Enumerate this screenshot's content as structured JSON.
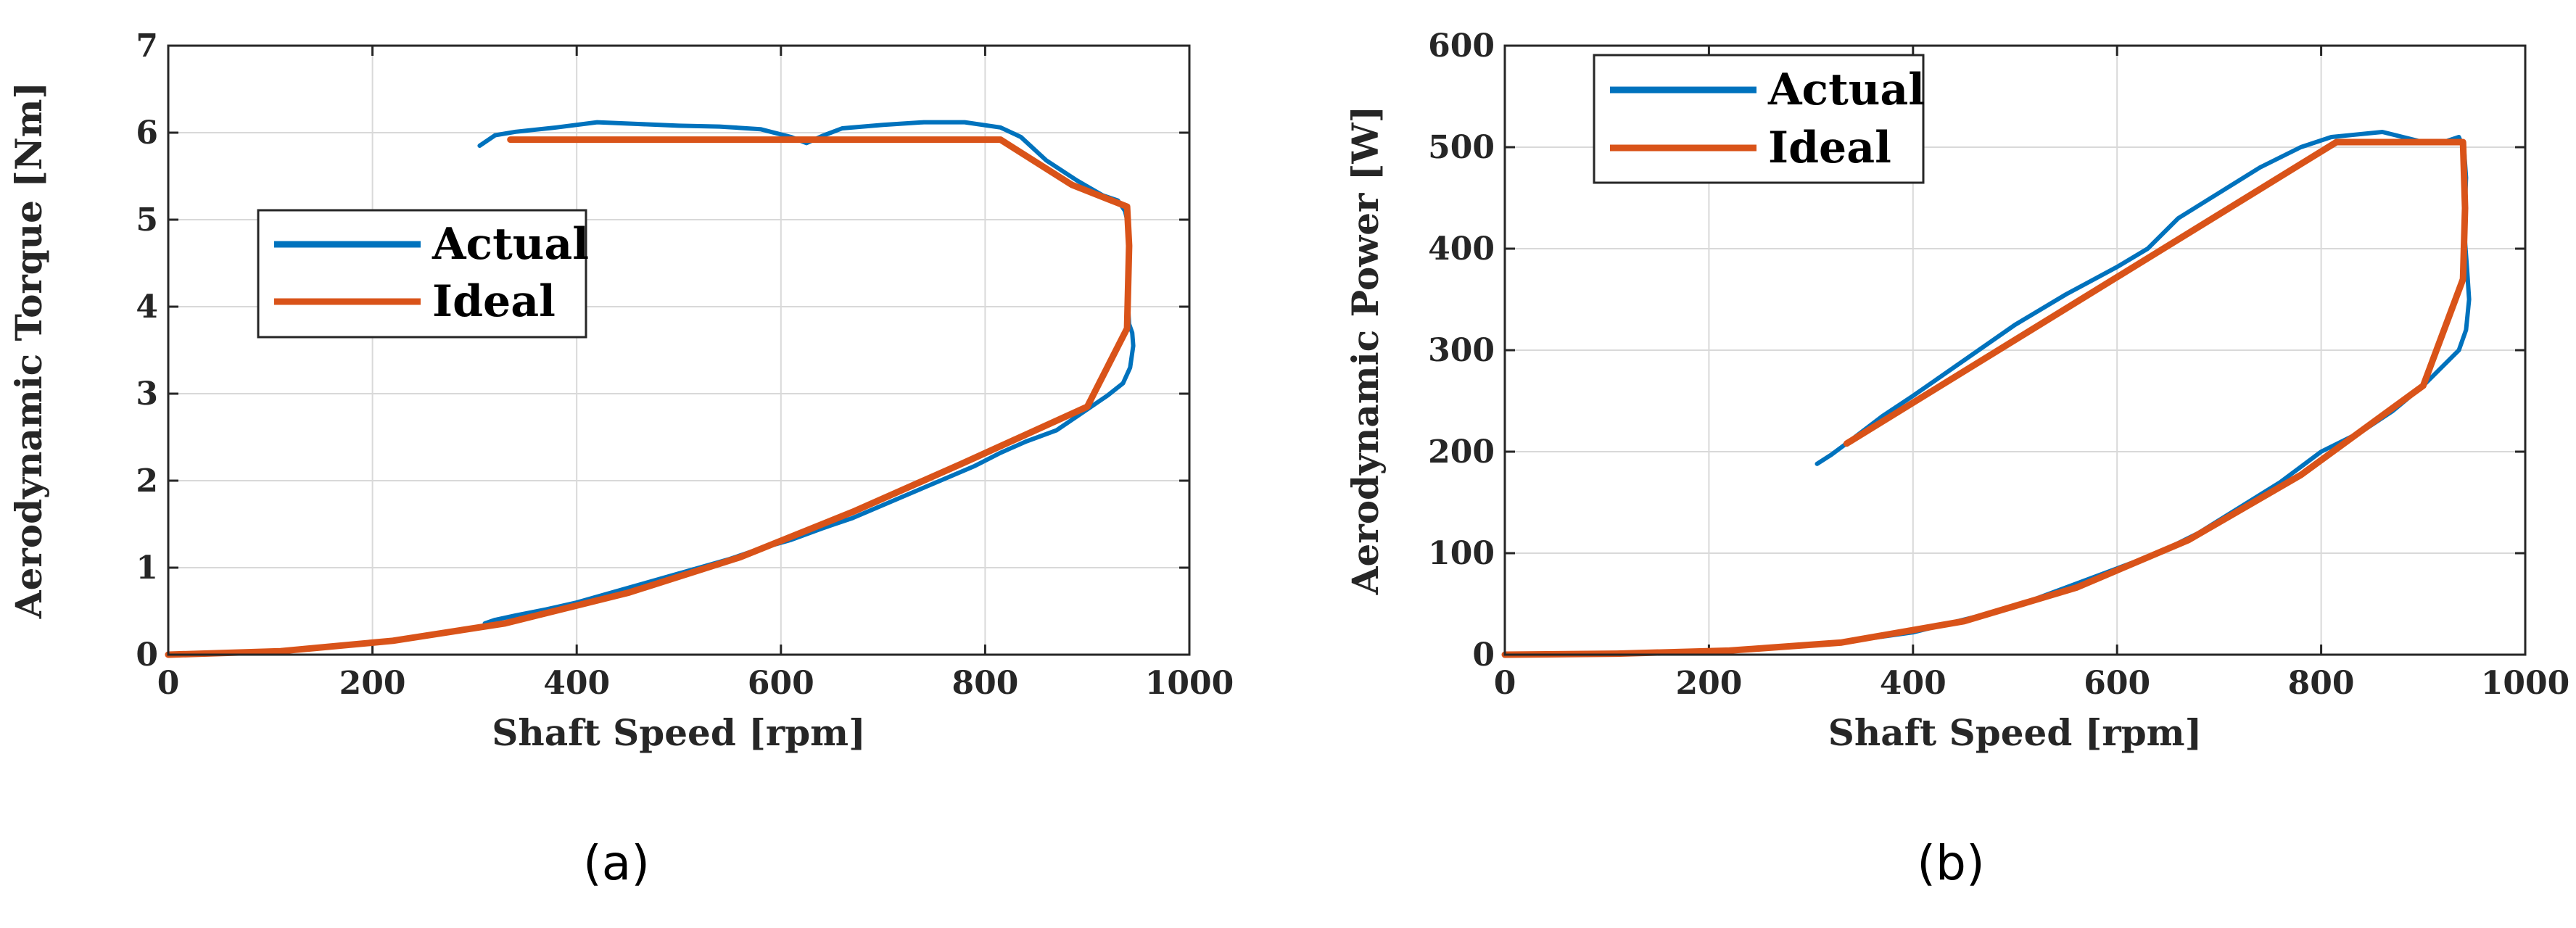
{
  "colors": {
    "actual": "#0072BD",
    "ideal": "#D95319",
    "grid": "#d9d9d9",
    "axis": "#262626"
  },
  "chart_data": [
    {
      "type": "line",
      "caption": "(a)",
      "xlabel": "Shaft Speed [rpm]",
      "ylabel": "Aerodynamic Torque [Nm]",
      "xlim": [
        0,
        1000
      ],
      "ylim": [
        0,
        7
      ],
      "xticks": [
        0,
        200,
        400,
        600,
        800,
        1000
      ],
      "yticks": [
        0,
        1,
        2,
        3,
        4,
        5,
        6,
        7
      ],
      "grid": true,
      "legend_position": "center-left",
      "series": [
        {
          "name": "Actual",
          "color": "#0072BD",
          "x": [
            305,
            320,
            340,
            380,
            420,
            460,
            500,
            540,
            580,
            610,
            625,
            640,
            660,
            700,
            740,
            780,
            815,
            835,
            860,
            890,
            915,
            930,
            937,
            940,
            941,
            941,
            940,
            941,
            944,
            945,
            942,
            935,
            920,
            900,
            870,
            840,
            815,
            790,
            760,
            730,
            700,
            670,
            640,
            610,
            580,
            550,
            520,
            490,
            460,
            430,
            400,
            370,
            340,
            320,
            310
          ],
          "y": [
            5.85,
            5.97,
            6.01,
            6.06,
            6.12,
            6.1,
            6.08,
            6.07,
            6.04,
            5.95,
            5.88,
            5.96,
            6.05,
            6.09,
            6.12,
            6.12,
            6.06,
            5.95,
            5.68,
            5.45,
            5.28,
            5.22,
            5.1,
            4.95,
            4.7,
            4.3,
            4.0,
            3.8,
            3.7,
            3.55,
            3.3,
            3.12,
            2.98,
            2.82,
            2.58,
            2.45,
            2.32,
            2.17,
            2.02,
            1.87,
            1.72,
            1.57,
            1.45,
            1.32,
            1.22,
            1.1,
            1.0,
            0.9,
            0.8,
            0.7,
            0.6,
            0.52,
            0.45,
            0.4,
            0.36
          ]
        },
        {
          "name": "Ideal",
          "color": "#D95319",
          "x": [
            0,
            110,
            220,
            330,
            450,
            560,
            670,
            780,
            900,
            939,
            941,
            939,
            885,
            815,
            335
          ],
          "y": [
            0,
            0.04,
            0.16,
            0.36,
            0.71,
            1.12,
            1.64,
            2.21,
            2.85,
            3.75,
            4.7,
            5.15,
            5.4,
            5.92,
            5.92
          ]
        }
      ]
    },
    {
      "type": "line",
      "caption": "(b)",
      "xlabel": "Shaft Speed [rpm]",
      "ylabel": "Aerodynamic Power [W]",
      "xlim": [
        0,
        1000
      ],
      "ylim": [
        0,
        600
      ],
      "xticks": [
        0,
        200,
        400,
        600,
        800,
        1000
      ],
      "yticks": [
        0,
        100,
        200,
        300,
        400,
        500,
        600
      ],
      "grid": true,
      "legend_position": "top-left",
      "series": [
        {
          "name": "Actual",
          "color": "#0072BD",
          "x": [
            306,
            320,
            340,
            370,
            400,
            450,
            500,
            550,
            600,
            630,
            660,
            700,
            740,
            780,
            810,
            830,
            860,
            880,
            900,
            920,
            935,
            940,
            942,
            940,
            943,
            945,
            942,
            935,
            920,
            900,
            870,
            840,
            800,
            760,
            720,
            680,
            640,
            600,
            560,
            520,
            480,
            440,
            400,
            350,
            310
          ],
          "y": [
            188,
            197,
            212,
            235,
            255,
            290,
            325,
            355,
            382,
            400,
            430,
            455,
            480,
            500,
            510,
            512,
            515,
            510,
            505,
            505,
            510,
            498,
            470,
            420,
            380,
            350,
            320,
            300,
            285,
            265,
            240,
            220,
            200,
            170,
            145,
            120,
            100,
            85,
            70,
            55,
            42,
            32,
            22,
            15,
            10
          ]
        },
        {
          "name": "Ideal",
          "color": "#D95319",
          "x": [
            0,
            110,
            220,
            330,
            450,
            560,
            670,
            780,
            900,
            939,
            941,
            939,
            815,
            335
          ],
          "y": [
            0,
            1,
            4,
            12,
            33,
            66,
            113,
            177,
            265,
            370,
            440,
            505,
            505,
            208
          ]
        }
      ]
    }
  ]
}
